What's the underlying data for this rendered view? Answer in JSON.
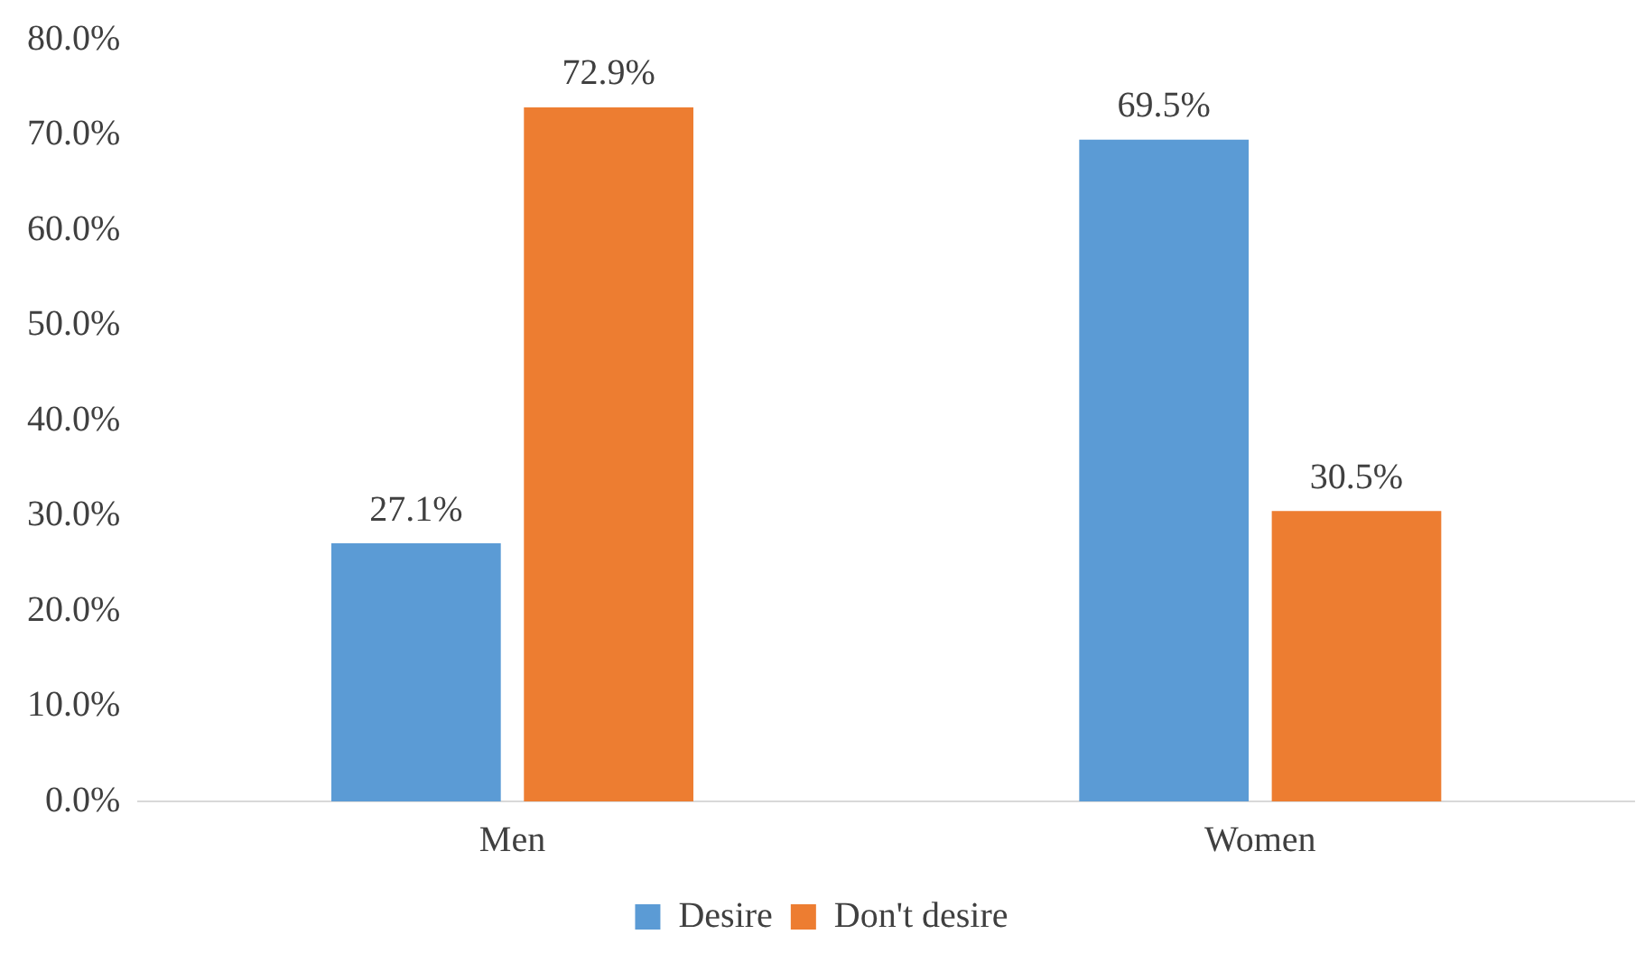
{
  "chart_data": {
    "type": "bar",
    "categories": [
      "Men",
      "Women"
    ],
    "series": [
      {
        "name": "Desire",
        "color": "#5b9bd5",
        "values": [
          27.1,
          69.5
        ],
        "value_labels": [
          "27.1%",
          "69.5%"
        ]
      },
      {
        "name": "Don't desire",
        "color": "#ed7d31",
        "values": [
          72.9,
          30.5
        ],
        "value_labels": [
          "72.9%",
          "30.5%"
        ]
      }
    ],
    "ylim": [
      0,
      80
    ],
    "yticks": [
      {
        "value": 0,
        "label": "0.0%"
      },
      {
        "value": 10,
        "label": "10.0%"
      },
      {
        "value": 20,
        "label": "20.0%"
      },
      {
        "value": 30,
        "label": "30.0%"
      },
      {
        "value": 40,
        "label": "40.0%"
      },
      {
        "value": 50,
        "label": "50.0%"
      },
      {
        "value": 60,
        "label": "60.0%"
      },
      {
        "value": 70,
        "label": "70.0%"
      },
      {
        "value": 80,
        "label": "80.0%"
      }
    ],
    "grid": false,
    "legend": "bottom"
  }
}
